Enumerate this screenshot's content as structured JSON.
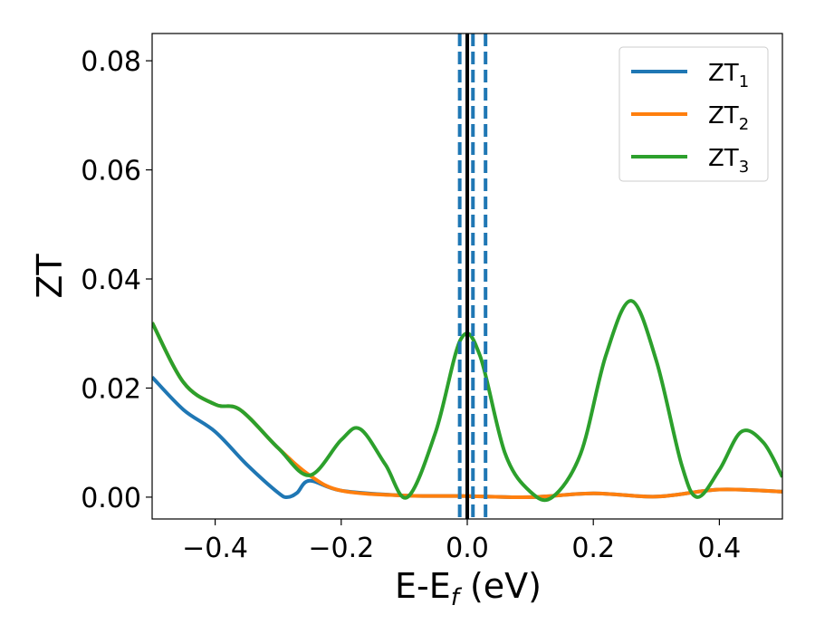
{
  "chart_data": {
    "type": "line",
    "xlabel_main": "E-E",
    "xlabel_sub": "f",
    "xlabel_unit": " (eV)",
    "ylabel": "ZT",
    "xlim": [
      -0.5,
      0.5
    ],
    "ylim": [
      -0.004,
      0.085
    ],
    "xticks": [
      -0.4,
      -0.2,
      0.0,
      0.2,
      0.4
    ],
    "xtick_labels": [
      "−0.4",
      "−0.2",
      "0.0",
      "0.2",
      "0.4"
    ],
    "yticks": [
      0.0,
      0.02,
      0.04,
      0.06,
      0.08
    ],
    "ytick_labels": [
      "0.00",
      "0.02",
      "0.04",
      "0.06",
      "0.08"
    ],
    "grid": false,
    "legend_position": "top-right",
    "vertical_lines": [
      {
        "x": 0.0,
        "style": "solid",
        "color": "#000000"
      },
      {
        "x": -0.012,
        "style": "dashed",
        "color": "#1f77b4"
      },
      {
        "x": 0.009,
        "style": "dashed",
        "color": "#1f77b4"
      },
      {
        "x": 0.029,
        "style": "dashed",
        "color": "#1f77b4"
      }
    ],
    "series": [
      {
        "name_main": "ZT",
        "name_sub": "1",
        "color": "#1f77b4",
        "x": [
          -0.5,
          -0.45,
          -0.4,
          -0.35,
          -0.3,
          -0.285,
          -0.27,
          -0.25,
          -0.2,
          -0.1,
          0.0,
          0.1,
          0.2,
          0.3,
          0.4,
          0.5
        ],
        "y": [
          0.022,
          0.016,
          0.012,
          0.006,
          0.0008,
          0.0,
          0.0008,
          0.003,
          0.0012,
          0.0003,
          0.0002,
          0.0,
          0.0007,
          0.0001,
          0.0014,
          0.001
        ]
      },
      {
        "name_main": "ZT",
        "name_sub": "2",
        "color": "#ff7f0e",
        "x": [
          -0.5,
          -0.45,
          -0.4,
          -0.36,
          -0.3,
          -0.25,
          -0.2,
          -0.1,
          0.0,
          0.1,
          0.2,
          0.3,
          0.4,
          0.5
        ],
        "y": [
          0.032,
          0.021,
          0.017,
          0.016,
          0.009,
          0.004,
          0.0012,
          0.0003,
          0.0002,
          0.0,
          0.0007,
          0.0001,
          0.0014,
          0.001
        ]
      },
      {
        "name_main": "ZT",
        "name_sub": "3",
        "color": "#2ca02c",
        "x": [
          -0.5,
          -0.45,
          -0.4,
          -0.36,
          -0.3,
          -0.25,
          -0.2,
          -0.17,
          -0.13,
          -0.095,
          -0.05,
          -0.01,
          0.02,
          0.06,
          0.1,
          0.135,
          0.18,
          0.22,
          0.26,
          0.3,
          0.34,
          0.365,
          0.4,
          0.435,
          0.47,
          0.5
        ],
        "y": [
          0.032,
          0.021,
          0.017,
          0.016,
          0.009,
          0.004,
          0.0105,
          0.0125,
          0.006,
          0.0,
          0.012,
          0.029,
          0.026,
          0.008,
          0.001,
          0.0,
          0.008,
          0.026,
          0.036,
          0.025,
          0.006,
          0.0,
          0.005,
          0.012,
          0.01,
          0.0037
        ]
      }
    ]
  }
}
